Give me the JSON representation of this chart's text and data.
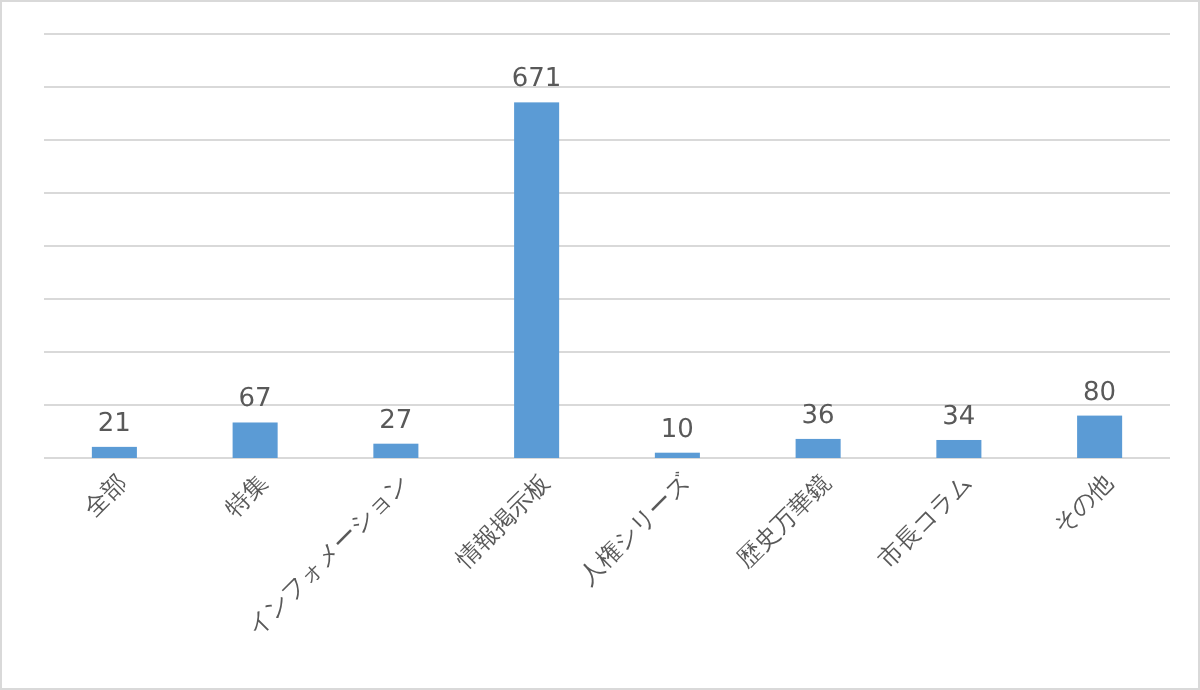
{
  "chart_data": {
    "type": "bar",
    "categories": [
      "全部",
      "特集",
      "インフォメーション",
      "情報掲示板",
      "人権シリーズ",
      "歴史万華鏡",
      "市長コラム",
      "その他"
    ],
    "values": [
      21,
      67,
      27,
      671,
      10,
      36,
      34,
      80
    ],
    "color": "#5b9bd5",
    "ylim": [
      0,
      800
    ],
    "yticks": [
      {
        "value": 0,
        "label": null
      },
      {
        "value": 100,
        "label": null
      },
      {
        "value": 200,
        "label": null
      },
      {
        "value": 300,
        "label": null
      },
      {
        "value": 400,
        "label": null
      },
      {
        "value": 500,
        "label": null
      },
      {
        "value": 600,
        "label": null
      },
      {
        "value": 700,
        "label": null
      },
      {
        "value": 800,
        "label": null
      }
    ],
    "grid": "y",
    "tick_labels": "x",
    "data_labels": true
  }
}
